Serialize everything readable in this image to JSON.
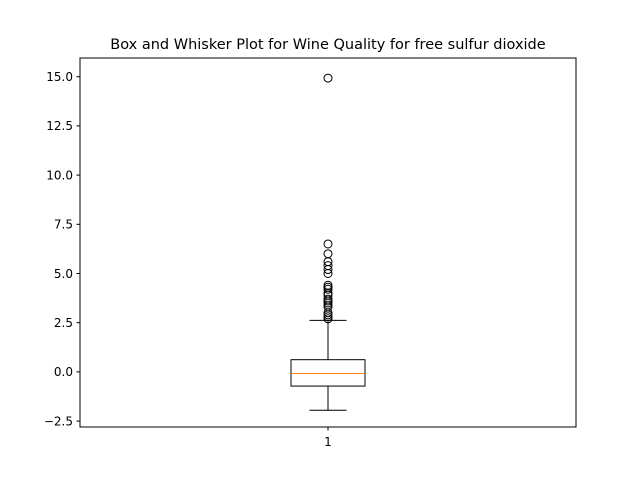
{
  "chart_data": {
    "type": "box",
    "title": "Box and Whisker Plot for Wine Quality for free sulfur dioxide",
    "xlabel": "",
    "ylabel": "",
    "categories": [
      "1"
    ],
    "ylim": [
      -2.8,
      15.95
    ],
    "yticks": [
      -2.5,
      0.0,
      2.5,
      5.0,
      7.5,
      10.0,
      12.5,
      15.0
    ],
    "ytick_labels": [
      "−2.5",
      "0.0",
      "2.5",
      "5.0",
      "7.5",
      "10.0",
      "12.5",
      "15.0"
    ],
    "grid": false,
    "box": {
      "whisker_low": -1.95,
      "q1": -0.72,
      "median": -0.08,
      "q3": 0.62,
      "whisker_high": 2.62
    },
    "outliers": [
      14.93,
      6.5,
      6.0,
      5.6,
      5.4,
      5.2,
      5.0,
      4.4,
      4.3,
      4.2,
      4.0,
      3.9,
      3.7,
      3.6,
      3.5,
      3.4,
      3.3,
      3.0,
      2.9,
      2.8,
      2.7
    ],
    "colors": {
      "box": "#000000",
      "median": "#ff7f0e",
      "outlier": "#000000",
      "background": "#ffffff"
    }
  }
}
